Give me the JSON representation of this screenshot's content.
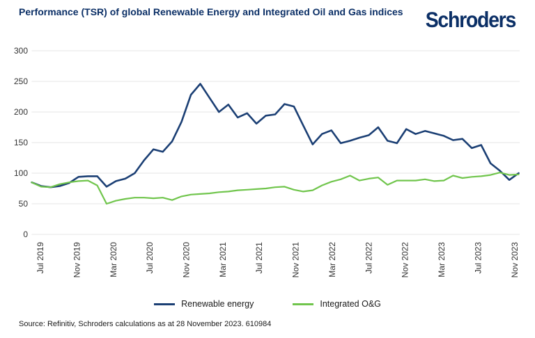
{
  "title": "Performance (TSR) of global Renewable Energy and Integrated Oil and Gas indices",
  "logo": "Schroders",
  "source": "Source: Refinitiv, Schroders calculations as at 28 November 2023. 610984",
  "chart_data": {
    "type": "line",
    "x_interval": "monthly",
    "x_start": "Jul 2019",
    "x_end": "Nov 2023",
    "x_tick_labels": [
      "Jul 2019",
      "Nov 2019",
      "Mar 2020",
      "Jul 2020",
      "Nov 2020",
      "Mar 2021",
      "Jul 2021",
      "Nov 2021",
      "Mar 2022",
      "Jul 2022",
      "Nov 2022",
      "Mar 2023",
      "Jul 2023",
      "Nov 2023"
    ],
    "x_tick_every_n_months": 4,
    "yticks": [
      0,
      50,
      100,
      150,
      200,
      250,
      300
    ],
    "ylim": [
      0,
      300
    ],
    "grid": "horizontal",
    "legend_position": "bottom-center",
    "series": [
      {
        "name": "Renewable energy",
        "color": "#1b3f74",
        "values": [
          85,
          79,
          77,
          79,
          84,
          94,
          95,
          95,
          78,
          87,
          91,
          100,
          121,
          139,
          135,
          152,
          184,
          228,
          246,
          223,
          200,
          212,
          191,
          198,
          181,
          194,
          196,
          213,
          209,
          178,
          147,
          164,
          170,
          149,
          153,
          158,
          162,
          175,
          153,
          149,
          172,
          164,
          169,
          165,
          161,
          154,
          156,
          141,
          146,
          116,
          104,
          89,
          100
        ]
      },
      {
        "name": "Integrated O&G",
        "color": "#70c54c",
        "values": [
          85,
          78,
          77,
          82,
          85,
          87,
          88,
          80,
          50,
          55,
          58,
          60,
          60,
          59,
          60,
          56,
          62,
          65,
          66,
          67,
          69,
          70,
          72,
          73,
          74,
          75,
          77,
          78,
          73,
          70,
          72,
          80,
          86,
          90,
          96,
          88,
          91,
          93,
          81,
          88,
          88,
          88,
          90,
          87,
          88,
          96,
          92,
          94,
          95,
          97,
          101,
          97,
          98
        ]
      }
    ]
  }
}
